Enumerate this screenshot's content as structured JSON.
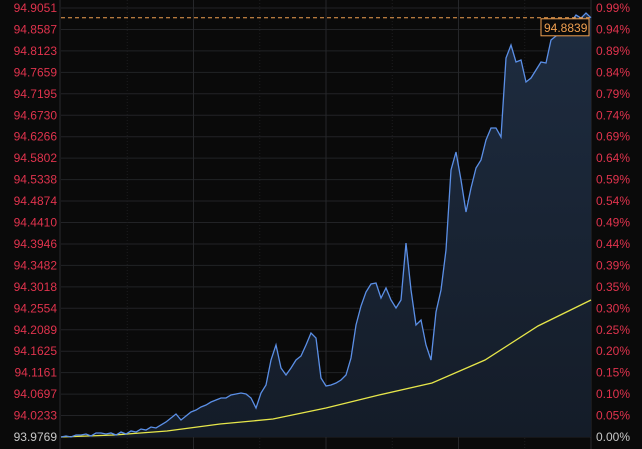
{
  "chart_data": {
    "type": "line",
    "title": "",
    "xlabel": "",
    "ylabel": "",
    "ylim": [
      93.9769,
      94.9051
    ],
    "pct_lim": [
      0.0,
      0.99
    ],
    "grid": true,
    "left_ticks": [
      "94.9051",
      "94.8587",
      "94.8123",
      "94.7659",
      "94.7195",
      "94.6730",
      "94.6266",
      "94.5802",
      "94.5338",
      "94.4874",
      "94.4410",
      "94.3946",
      "94.3482",
      "94.3018",
      "94.2554",
      "94.2089",
      "94.1625",
      "94.1161",
      "94.0697",
      "94.0233",
      "93.9769"
    ],
    "right_ticks": [
      "0.99%",
      "0.94%",
      "0.89%",
      "0.84%",
      "0.79%",
      "0.74%",
      "0.69%",
      "0.64%",
      "0.59%",
      "0.54%",
      "0.49%",
      "0.44%",
      "0.39%",
      "0.35%",
      "0.30%",
      "0.25%",
      "0.20%",
      "0.15%",
      "0.10%",
      "0.05%",
      "0.00%"
    ],
    "last_price": 94.8839,
    "last_price_label": "94.8839",
    "colors": {
      "price": "#5b8fe6",
      "average": "#e6e64a",
      "up_label": "#e0334d",
      "base_label": "#c8c8c8",
      "last_marker": "#f0a050"
    },
    "series": [
      {
        "values": [
          93.9769,
          93.9791,
          93.9769,
          93.9812,
          93.9812,
          93.9834,
          93.9791,
          93.9856,
          93.9856,
          93.9834,
          93.9856,
          93.9812,
          93.9877,
          93.9834,
          93.9899,
          93.9877,
          93.9942,
          93.992,
          93.9985,
          93.9964,
          94.0029,
          94.0094,
          94.018,
          94.0267,
          94.0137,
          94.0223,
          94.031,
          94.0353,
          94.0418,
          94.0461,
          94.0526,
          94.057,
          94.0613,
          94.0613,
          94.0678,
          94.0699,
          94.0721,
          94.0699,
          94.0613,
          94.0396,
          94.0721,
          94.0894,
          94.1435,
          94.176,
          94.1262,
          94.111,
          94.1262,
          94.1435,
          94.1522,
          94.176,
          94.2019,
          94.1911,
          94.1046,
          94.0872,
          94.0894,
          94.0937,
          94.1002,
          94.111,
          94.1478,
          94.2192,
          94.2603,
          94.2906,
          94.3079,
          94.3101,
          94.2776,
          94.2993,
          94.2733,
          94.256,
          94.2733,
          94.3966,
          94.295,
          94.2192,
          94.23,
          94.176,
          94.1435,
          94.2474,
          94.295,
          94.3815,
          94.5546,
          94.5935,
          94.5329,
          94.4637,
          94.5156,
          94.5589,
          94.5762,
          94.6195,
          94.6455,
          94.6455,
          94.626,
          94.7969,
          94.825,
          94.7883,
          94.7926,
          94.745,
          94.7536,
          94.7709,
          94.7883,
          94.7861,
          94.8358,
          94.8445,
          94.8531,
          94.8618,
          94.8748,
          94.8899,
          94.8834,
          94.8942,
          94.8839
        ]
      },
      {
        "values": [
          93.9769,
          93.9812,
          93.9899,
          94.005,
          94.0158,
          94.0396,
          94.0678,
          94.0937,
          94.1435,
          94.2171,
          94.2733
        ]
      }
    ]
  }
}
